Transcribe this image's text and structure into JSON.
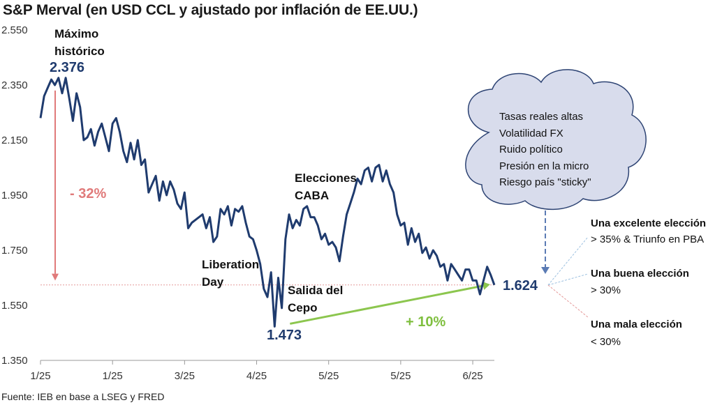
{
  "title": "S&P Merval (en USD CCL y ajustado por inflación de EE.UU.)",
  "source": "Fuente: IEB en base a LSEG y FRED",
  "colors": {
    "line": "#1f3b6e",
    "red": "#e07a7a",
    "green": "#8cc64e",
    "cloud_fill": "#d8dcec",
    "cloud_stroke": "#2d4373"
  },
  "annotations": {
    "max_label_1": "Máximo",
    "max_label_2": "histórico",
    "max_value": "2.376",
    "drop_pct": "- 32%",
    "liberation_1": "Liberation",
    "liberation_2": "Day",
    "min_value": "1.473",
    "cepo_1": "Salida del",
    "cepo_2": "Cepo",
    "elecciones_1": "Elecciones",
    "elecciones_2": "CABA",
    "rise_pct": "+ 10%",
    "last_value": "1.624"
  },
  "cloud": {
    "lines": [
      "Tasas reales altas",
      "Volatilidad FX",
      "Ruido político",
      "Presión en la micro",
      "Riesgo país \"sticky\""
    ]
  },
  "scenarios": [
    {
      "title": "Una excelente elección",
      "detail": "> 35% & Triunfo en PBA"
    },
    {
      "title": "Una buena elección",
      "detail": "> 30%"
    },
    {
      "title": "Una mala elección",
      "detail": "< 30%"
    }
  ],
  "chart_data": {
    "type": "line",
    "title": "S&P Merval (en USD CCL y ajustado por inflación de EE.UU.)",
    "xlabel": "",
    "ylabel": "",
    "ylim": [
      1350,
      2550
    ],
    "y_ticks": [
      "2.550",
      "2.350",
      "2.150",
      "1.950",
      "1.750",
      "1.550",
      "1.350"
    ],
    "y_tick_values": [
      2550,
      2350,
      2150,
      1950,
      1750,
      1550,
      1350
    ],
    "x_ticks": [
      "1/25",
      "1/25",
      "3/25",
      "4/25",
      "5/25",
      "5/25",
      "6/25"
    ],
    "x_tick_values": [
      0,
      20,
      40,
      60,
      80,
      100,
      120
    ],
    "xlim": [
      0,
      126
    ],
    "series": [
      {
        "x": [
          0,
          1,
          2,
          3,
          4,
          5,
          6,
          7,
          8,
          9,
          10,
          11,
          12,
          13,
          14,
          15,
          16,
          17,
          18,
          19,
          20,
          21,
          22,
          23,
          24,
          25,
          26,
          27,
          28,
          29,
          30,
          31,
          32,
          33,
          34,
          35,
          36,
          37,
          38,
          39,
          40,
          41,
          42,
          43,
          44,
          45,
          46,
          47,
          48,
          49,
          50,
          51,
          52,
          53,
          54,
          55,
          56,
          57,
          58,
          59,
          60,
          61,
          62,
          63,
          64,
          65,
          66,
          67,
          68,
          69,
          70,
          71,
          72,
          73,
          74,
          75,
          76,
          77,
          78,
          79,
          80,
          81,
          82,
          83,
          84,
          85,
          86,
          87,
          88,
          89,
          90,
          91,
          92,
          93,
          94,
          95,
          96,
          97,
          98,
          99,
          100,
          101,
          102,
          103,
          104,
          105,
          106,
          107,
          108,
          109,
          110,
          111,
          112,
          113,
          114,
          115,
          116,
          117,
          118,
          119,
          120,
          121,
          122,
          123,
          124,
          125,
          126
        ],
        "values": [
          2230,
          2310,
          2340,
          2370,
          2350,
          2376,
          2320,
          2376,
          2300,
          2220,
          2320,
          2270,
          2150,
          2160,
          2190,
          2130,
          2180,
          2210,
          2160,
          2110,
          2210,
          2230,
          2180,
          2110,
          2070,
          2140,
          2080,
          2150,
          2060,
          2080,
          1960,
          1990,
          2020,
          1930,
          2000,
          1950,
          2000,
          1970,
          1920,
          1900,
          1960,
          1830,
          1850,
          1860,
          1870,
          1880,
          1830,
          1870,
          1780,
          1800,
          1900,
          1880,
          1910,
          1840,
          1900,
          1890,
          1910,
          1850,
          1800,
          1790,
          1750,
          1700,
          1610,
          1580,
          1670,
          1473,
          1650,
          1540,
          1790,
          1880,
          1830,
          1860,
          1840,
          1900,
          1910,
          1870,
          1870,
          1840,
          1790,
          1810,
          1770,
          1780,
          1760,
          1710,
          1800,
          1880,
          1920,
          1960,
          2010,
          1990,
          2040,
          2050,
          2000,
          2050,
          2060,
          2000,
          2040,
          1990,
          1960,
          1880,
          1840,
          1850,
          1770,
          1830,
          1780,
          1810,
          1740,
          1760,
          1720,
          1750,
          1730,
          1690,
          1700,
          1640,
          1700,
          1680,
          1660,
          1640,
          1680,
          1680,
          1640,
          1640,
          1590,
          1640,
          1690,
          1660,
          1624
        ]
      }
    ],
    "reference_line": 1624,
    "annotations": [
      "Máximo histórico 2.376",
      "- 32%",
      "Liberation Day",
      "Salida del Cepo",
      "1.473",
      "Elecciones CABA",
      "+ 10%",
      "1.624"
    ]
  }
}
